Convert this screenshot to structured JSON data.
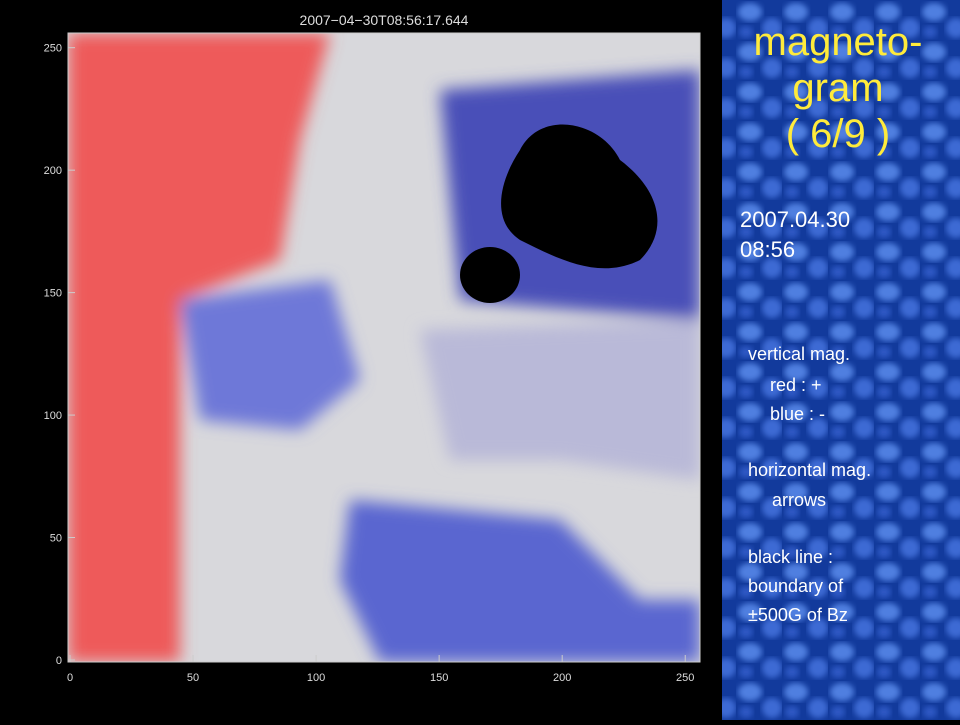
{
  "plot": {
    "title": "2007−04−30T08:56:17.644",
    "xlim": [
      0,
      256
    ],
    "ylim": [
      0,
      256
    ],
    "xticks": [
      0,
      50,
      100,
      150,
      200,
      250
    ],
    "yticks": [
      0,
      50,
      100,
      150,
      200,
      250
    ]
  },
  "side": {
    "heading": [
      "magneto-",
      "gram",
      "( 6/9 )"
    ],
    "date": [
      "2007.04.30",
      "08:56"
    ],
    "notes": [
      "vertical mag.",
      "red  :  +",
      "blue :  -",
      "horizontal mag.",
      "arrows",
      "black line :",
      "boundary of",
      "±500G of Bz"
    ]
  }
}
